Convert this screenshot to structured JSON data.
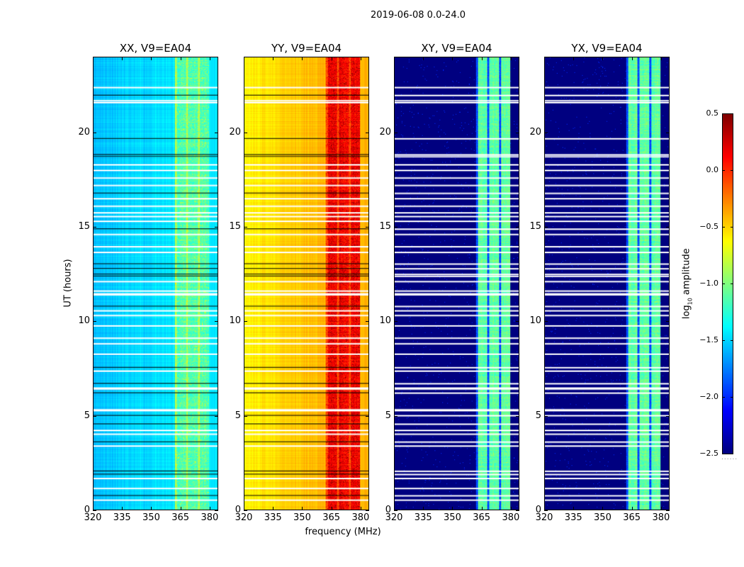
{
  "chart_data": {
    "type": "heatmap",
    "suptitle": "2019-06-08 0.0-24.0",
    "xlabel": "frequency (MHz)",
    "ylabel": "UT (hours)",
    "xlim": [
      320,
      384.4
    ],
    "ylim": [
      0,
      24
    ],
    "xticks": [
      "320",
      "335",
      "350",
      "365",
      "380"
    ],
    "xtick_values": [
      320,
      335,
      350,
      365,
      380
    ],
    "yticks": [
      "0",
      "5",
      "10",
      "15",
      "20"
    ],
    "ytick_values": [
      0,
      5,
      10,
      15,
      20
    ],
    "colormap": "jet",
    "colorbar": {
      "label_main": "log",
      "label_sub": "10",
      "label_rest": " amplitude",
      "range": [
        -2.5,
        0.5
      ],
      "ticks": [
        "0.5",
        "0.0",
        "−0.5",
        "−1.0",
        "−1.5",
        "−2.0",
        "−2.5"
      ],
      "tick_values": [
        0.5,
        0,
        -0.5,
        -1,
        -1.5,
        -2,
        -2.5
      ]
    },
    "panels": [
      {
        "title": "XX, V9=EA04",
        "low_level": -1.55,
        "mid_level": -1.45,
        "band_level": -1.15,
        "stripe_level": -0.9,
        "flag_color": "#000000"
      },
      {
        "title": "YY, V9=EA04",
        "low_level": -0.6,
        "mid_level": -0.4,
        "band_level": 0.15,
        "stripe_level": -0.1,
        "flag_color": "#000000"
      },
      {
        "title": "XY, V9=EA04",
        "low_level": -2.5,
        "mid_level": -2.5,
        "band_level": -1.1,
        "stripe_level": -1.9,
        "flag_color": "#ffffff"
      },
      {
        "title": "YX, V9=EA04",
        "low_level": -2.5,
        "mid_level": -2.5,
        "band_level": -1.1,
        "stripe_level": -1.9,
        "flag_color": "#ffffff"
      }
    ],
    "band_mhz": [
      362,
      380
    ],
    "flagged_white_hours": [
      22.4,
      21.7,
      21.6,
      18.3,
      18.0,
      17.6,
      17.2,
      16.5,
      16.1,
      15.75,
      15.55,
      15.3,
      14.6,
      13.95,
      13.65,
      12.1,
      11.6,
      11.45,
      11.4,
      10.55,
      10.3,
      9.75,
      9.1,
      8.8,
      8.25,
      7.35,
      6.45,
      6.4,
      5.3,
      5.25,
      4.2,
      4.0,
      3.37,
      1.65,
      1.12,
      0.5
    ],
    "flagged_black_hours": [
      22.0,
      19.7,
      18.85,
      18.75,
      16.8,
      14.9,
      13.05,
      12.8,
      12.5,
      12.4,
      10.8,
      7.55,
      6.7,
      6.2,
      5.0,
      4.55,
      3.6,
      2.05,
      1.88,
      0.75
    ]
  }
}
